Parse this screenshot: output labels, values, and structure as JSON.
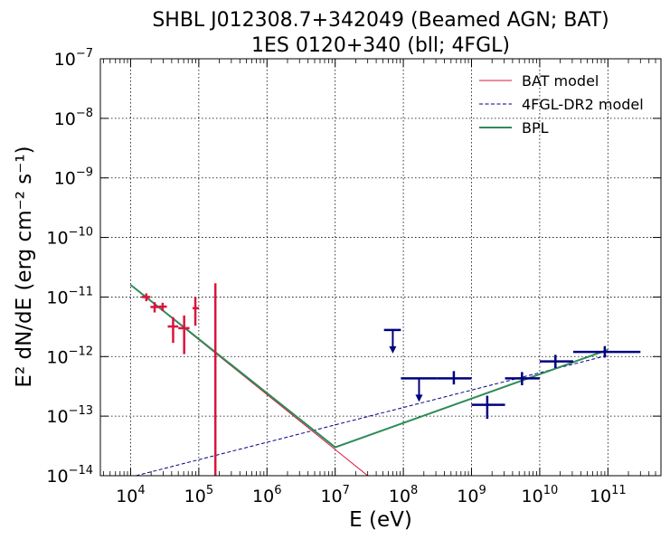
{
  "chart_data": {
    "type": "scatter",
    "title_line1": "SHBL J012308.7+342049 (Beamed AGN; BAT)",
    "title_line2": "1ES 0120+340 (bll; 4FGL)",
    "xlabel": "E (eV)",
    "ylabel": "E² dN/dE (erg cm⁻² s⁻¹)",
    "x_scale": "log",
    "y_scale": "log",
    "xlim": [
      3600.0,
      600000000000.0
    ],
    "ylim": [
      1e-14,
      1e-07
    ],
    "grid": true,
    "legend_position": "top-right",
    "x_ticks": [
      {
        "value": 10000.0,
        "base": "10",
        "exp": "4"
      },
      {
        "value": 100000.0,
        "base": "10",
        "exp": "5"
      },
      {
        "value": 1000000.0,
        "base": "10",
        "exp": "6"
      },
      {
        "value": 10000000.0,
        "base": "10",
        "exp": "7"
      },
      {
        "value": 100000000.0,
        "base": "10",
        "exp": "8"
      },
      {
        "value": 1000000000.0,
        "base": "10",
        "exp": "9"
      },
      {
        "value": 10000000000.0,
        "base": "10",
        "exp": "10"
      },
      {
        "value": 100000000000.0,
        "base": "10",
        "exp": "11"
      }
    ],
    "y_ticks": [
      {
        "value": 1e-14,
        "base": "10",
        "exp": "−14"
      },
      {
        "value": 1e-13,
        "base": "10",
        "exp": "−13"
      },
      {
        "value": 1e-12,
        "base": "10",
        "exp": "−12"
      },
      {
        "value": 1e-11,
        "base": "10",
        "exp": "−11"
      },
      {
        "value": 1e-10,
        "base": "10",
        "exp": "−10"
      },
      {
        "value": 1e-09,
        "base": "10",
        "exp": "−9"
      },
      {
        "value": 1e-08,
        "base": "10",
        "exp": "−8"
      },
      {
        "value": 1e-07,
        "base": "10",
        "exp": "−7"
      }
    ],
    "series": [
      {
        "name": "BAT model",
        "kind": "line",
        "color": "#dc143c",
        "dash": "solid",
        "width": 1,
        "points": [
          [
            10000.0,
            1.6e-11
          ],
          [
            30000000.0,
            1e-14
          ]
        ]
      },
      {
        "name": "4FGL-DR2 model",
        "kind": "line",
        "color": "#000080",
        "dash": "dashed",
        "width": 1,
        "points": [
          [
            12000.0,
            1e-14
          ],
          [
            100000000000.0,
            1.05e-12
          ]
        ]
      },
      {
        "name": "BPL",
        "kind": "line",
        "color": "#2e8b57",
        "dash": "solid",
        "width": 2,
        "points": [
          [
            10000.0,
            1.6e-11
          ],
          [
            10000000.0,
            3e-14
          ],
          [
            100000000000.0,
            1.3e-12
          ]
        ]
      }
    ],
    "bat_points": {
      "color": "#dc143c",
      "points": [
        {
          "x": 17000.0,
          "xlo": 14500.0,
          "xhi": 19500.0,
          "y": 1e-11,
          "ylo": 8.5e-12,
          "yhi": 1.15e-11
        },
        {
          "x": 22500.0,
          "xlo": 19500.0,
          "xhi": 26000.0,
          "y": 6.8e-12,
          "ylo": 5.5e-12,
          "yhi": 8.2e-12
        },
        {
          "x": 29500.0,
          "xlo": 26000.0,
          "xhi": 34000.0,
          "y": 6.9e-12,
          "ylo": 5.8e-12,
          "yhi": 8e-12
        },
        {
          "x": 42000.0,
          "xlo": 35000.0,
          "xhi": 50000.0,
          "y": 3.2e-12,
          "ylo": 1.7e-12,
          "yhi": 4.6e-12
        },
        {
          "x": 61000.0,
          "xlo": 50000.0,
          "xhi": 73000.0,
          "y": 3e-12,
          "ylo": 1.1e-12,
          "yhi": 4.9e-12
        },
        {
          "x": 89000.0,
          "xlo": 81000.0,
          "xhi": 100000.0,
          "y": 6.5e-12,
          "ylo": 3.3e-12,
          "yhi": 1e-11
        },
        {
          "x": 175000.0,
          "xlo": 170000.0,
          "xhi": 180000.0,
          "y": 1e-12,
          "ylo": 1e-14,
          "yhi": 1.7e-11
        }
      ]
    },
    "fermi_points": {
      "color": "#000080",
      "points": [
        {
          "x": 70000000.0,
          "xlo": 52000000.0,
          "xhi": 92000000.0,
          "y": 2.8e-12,
          "upper_limit": true
        },
        {
          "x": 170000000.0,
          "xlo": 92000000.0,
          "xhi": 310000000.0,
          "y": 4.3e-13,
          "upper_limit": true
        },
        {
          "x": 550000000.0,
          "xlo": 310000000.0,
          "xhi": 1000000000.0,
          "y": 4.3e-13,
          "ylo": 3.4e-13,
          "yhi": 5.7e-13
        },
        {
          "x": 1700000000.0,
          "xlo": 1000000000.0,
          "xhi": 3100000000.0,
          "y": 1.55e-13,
          "ylo": 9e-14,
          "yhi": 2.2e-13
        },
        {
          "x": 5500000000.0,
          "xlo": 3100000000.0,
          "xhi": 10000000000.0,
          "y": 4.3e-13,
          "ylo": 3.3e-13,
          "yhi": 5.5e-13
        },
        {
          "x": 17000000000.0,
          "xlo": 10000000000.0,
          "xhi": 31000000000.0,
          "y": 8.3e-13,
          "ylo": 6.4e-13,
          "yhi": 1.07e-12
        },
        {
          "x": 90000000000.0,
          "xlo": 31000000000.0,
          "xhi": 300000000000.0,
          "y": 1.2e-12,
          "ylo": 9.6e-13,
          "yhi": 1.5e-12
        }
      ]
    }
  }
}
